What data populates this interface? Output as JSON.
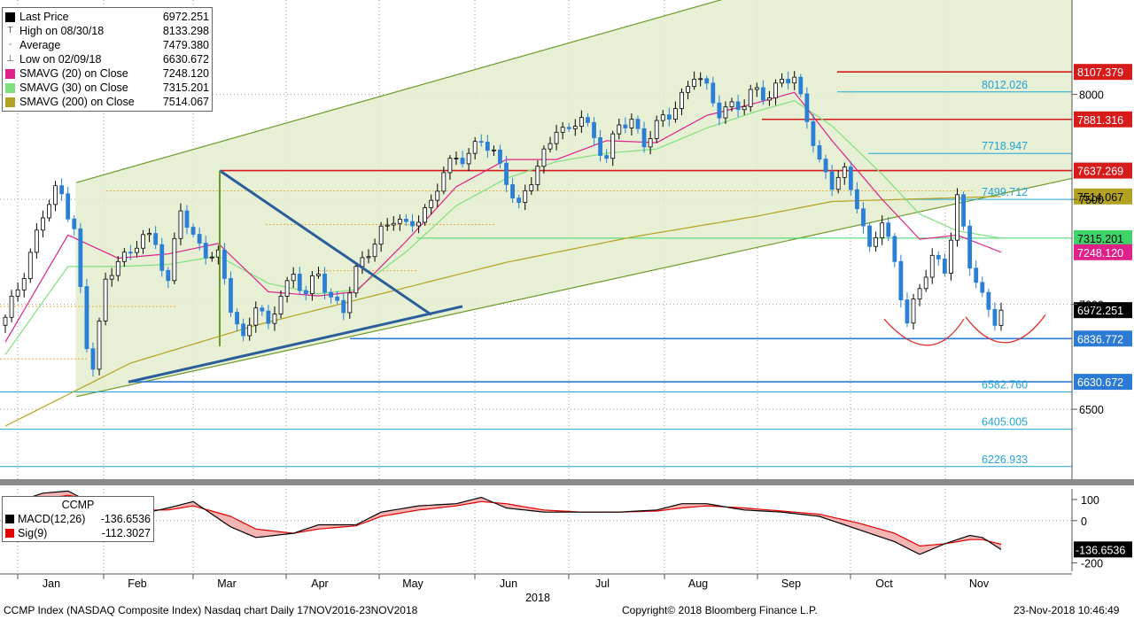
{
  "chart_data": {
    "type": "candlestick",
    "legend": {
      "rows": [
        {
          "label": "Last Price",
          "value": "6972.251",
          "swatch": "#000000"
        },
        {
          "label": "High on 08/30/18",
          "value": "8133.298",
          "glyph": "T"
        },
        {
          "label": "Average",
          "value": "7479.380",
          "glyph": "-"
        },
        {
          "label": "Low on 02/09/18",
          "value": "6630.672",
          "glyph": "⊥"
        },
        {
          "label": "SMAVG (20)  on Close",
          "value": "7248.120",
          "swatch": "#e0218a"
        },
        {
          "label": "SMAVG (30)  on Close",
          "value": "7315.201",
          "swatch": "#7fe07f"
        },
        {
          "label": "SMAVG (200)  on Close",
          "value": "7514.067",
          "swatch": "#b3a222"
        }
      ]
    },
    "x_months": [
      "Jan",
      "Feb",
      "Mar",
      "Apr",
      "May",
      "Jun",
      "Jul",
      "Aug",
      "Sep",
      "Oct",
      "Nov"
    ],
    "x_year": "2018",
    "y_ticks": [
      6500,
      7000,
      7500,
      8000
    ],
    "y_tick_labels": [
      "6500",
      "7000",
      "7500",
      "8000"
    ],
    "ylim": [
      6150,
      8450
    ],
    "price_path": [
      [
        0,
        6920
      ],
      [
        2,
        7080
      ],
      [
        4,
        7250
      ],
      [
        6,
        7420
      ],
      [
        8,
        7530
      ],
      [
        9,
        7520
      ],
      [
        11,
        7380
      ],
      [
        12,
        7060
      ],
      [
        13,
        6780
      ],
      [
        14,
        6700
      ],
      [
        15,
        6900
      ],
      [
        16,
        7100
      ],
      [
        18,
        7240
      ],
      [
        20,
        7220
      ],
      [
        22,
        7330
      ],
      [
        24,
        7300
      ],
      [
        26,
        7110
      ],
      [
        28,
        7440
      ],
      [
        30,
        7320
      ],
      [
        32,
        7260
      ],
      [
        34,
        7220
      ],
      [
        36,
        6980
      ],
      [
        38,
        6840
      ],
      [
        40,
        7010
      ],
      [
        42,
        6870
      ],
      [
        44,
        7060
      ],
      [
        46,
        7150
      ],
      [
        48,
        7040
      ],
      [
        50,
        7140
      ],
      [
        52,
        7040
      ],
      [
        54,
        6980
      ],
      [
        56,
        7140
      ],
      [
        58,
        7260
      ],
      [
        60,
        7360
      ],
      [
        62,
        7400
      ],
      [
        64,
        7360
      ],
      [
        66,
        7430
      ],
      [
        68,
        7480
      ],
      [
        70,
        7620
      ],
      [
        72,
        7700
      ],
      [
        74,
        7730
      ],
      [
        76,
        7770
      ],
      [
        78,
        7710
      ],
      [
        80,
        7610
      ],
      [
        82,
        7460
      ],
      [
        84,
        7580
      ],
      [
        86,
        7720
      ],
      [
        88,
        7860
      ],
      [
        90,
        7800
      ],
      [
        92,
        7900
      ],
      [
        94,
        7800
      ],
      [
        96,
        7700
      ],
      [
        98,
        7840
      ],
      [
        100,
        7880
      ],
      [
        102,
        7780
      ],
      [
        104,
        7840
      ],
      [
        106,
        7900
      ],
      [
        108,
        8000
      ],
      [
        110,
        8100
      ],
      [
        112,
        8010
      ],
      [
        114,
        7920
      ],
      [
        116,
        7960
      ],
      [
        118,
        7940
      ],
      [
        120,
        8020
      ],
      [
        122,
        8000
      ],
      [
        124,
        8080
      ],
      [
        126,
        8050
      ],
      [
        128,
        7900
      ],
      [
        130,
        7680
      ],
      [
        132,
        7560
      ],
      [
        134,
        7620
      ],
      [
        136,
        7500
      ],
      [
        138,
        7250
      ],
      [
        140,
        7390
      ],
      [
        142,
        7200
      ],
      [
        144,
        6930
      ],
      [
        146,
        7060
      ],
      [
        148,
        7220
      ],
      [
        150,
        7180
      ],
      [
        152,
        7500
      ],
      [
        154,
        7180
      ],
      [
        156,
        7040
      ],
      [
        158,
        6940
      ],
      [
        159,
        6972.251
      ]
    ],
    "sma20": [
      [
        0,
        6820
      ],
      [
        10,
        7330
      ],
      [
        18,
        7220
      ],
      [
        26,
        7240
      ],
      [
        34,
        7290
      ],
      [
        42,
        7060
      ],
      [
        50,
        7040
      ],
      [
        56,
        7060
      ],
      [
        64,
        7300
      ],
      [
        72,
        7560
      ],
      [
        80,
        7690
      ],
      [
        88,
        7690
      ],
      [
        96,
        7780
      ],
      [
        104,
        7770
      ],
      [
        112,
        7900
      ],
      [
        120,
        7960
      ],
      [
        126,
        8010
      ],
      [
        132,
        7780
      ],
      [
        140,
        7500
      ],
      [
        146,
        7310
      ],
      [
        152,
        7330
      ],
      [
        159,
        7248.12
      ]
    ],
    "sma30": [
      [
        0,
        6760
      ],
      [
        10,
        7180
      ],
      [
        18,
        7180
      ],
      [
        26,
        7190
      ],
      [
        34,
        7230
      ],
      [
        42,
        7100
      ],
      [
        50,
        7050
      ],
      [
        56,
        7070
      ],
      [
        64,
        7250
      ],
      [
        72,
        7470
      ],
      [
        80,
        7600
      ],
      [
        88,
        7680
      ],
      [
        96,
        7720
      ],
      [
        104,
        7740
      ],
      [
        112,
        7840
      ],
      [
        120,
        7920
      ],
      [
        126,
        7970
      ],
      [
        132,
        7850
      ],
      [
        140,
        7620
      ],
      [
        146,
        7430
      ],
      [
        152,
        7350
      ],
      [
        159,
        7315.201
      ]
    ],
    "sma200": [
      [
        0,
        6420
      ],
      [
        20,
        6720
      ],
      [
        40,
        6900
      ],
      [
        60,
        7050
      ],
      [
        80,
        7200
      ],
      [
        100,
        7320
      ],
      [
        120,
        7420
      ],
      [
        132,
        7490
      ],
      [
        159,
        7514.067
      ]
    ],
    "horizontal_levels": [
      {
        "value": 8107.379,
        "color": "#d71a1a",
        "label": "8107.379",
        "boxed": true
      },
      {
        "value": 8012.026,
        "color": "#21a6d8",
        "label": "8012.026",
        "boxed": false
      },
      {
        "value": 7881.316,
        "color": "#d71a1a",
        "label": "7881.316",
        "boxed": true
      },
      {
        "value": 7718.947,
        "color": "#21a6d8",
        "label": "7718.947",
        "boxed": false
      },
      {
        "value": 7637.269,
        "color": "#d71a1a",
        "label": "7637.269",
        "boxed": true
      },
      {
        "value": 7499.712,
        "color": "#21a6d8",
        "label": "7499.712",
        "boxed": false
      },
      {
        "value": 7514.067,
        "color": "#b3a222",
        "label": "7514.067",
        "boxed": true
      },
      {
        "value": 7315.201,
        "color": "#3fd46a",
        "label": "7315.201",
        "boxed": true
      },
      {
        "value": 7248.12,
        "color": "#e0218a",
        "label": "7248.120",
        "boxed": true
      },
      {
        "value": 6972.251,
        "color": "#000000",
        "label": "6972.251",
        "boxed": true
      },
      {
        "value": 6836.772,
        "color": "#2b7bd6",
        "label": "6836.772",
        "boxed": true
      },
      {
        "value": 6630.672,
        "color": "#2b7bd6",
        "label": "6630.672",
        "boxed": true
      },
      {
        "value": 6582.76,
        "color": "#21a6d8",
        "label": "6582.760",
        "boxed": false
      },
      {
        "value": 6405.005,
        "color": "#21a6d8",
        "label": "6405.005",
        "boxed": false
      },
      {
        "value": 6226.933,
        "color": "#21a6d8",
        "label": "6226.933",
        "boxed": false
      }
    ],
    "macd": {
      "title": "CCMP",
      "macd_label": "MACD(12,26)",
      "macd_value": "-136.6536",
      "sig_label": "Sig(9)",
      "sig_value": "-112.3027",
      "y_ticks": [
        100,
        0,
        -200
      ],
      "y_tick_labels": [
        "100",
        "0",
        "-200"
      ],
      "ylim": [
        -240,
        150
      ],
      "last_box": "-136.6536",
      "macd_line": [
        [
          0,
          70
        ],
        [
          6,
          130
        ],
        [
          10,
          140
        ],
        [
          14,
          80
        ],
        [
          20,
          20
        ],
        [
          26,
          60
        ],
        [
          30,
          90
        ],
        [
          36,
          -30
        ],
        [
          40,
          -80
        ],
        [
          46,
          -60
        ],
        [
          50,
          -20
        ],
        [
          56,
          -20
        ],
        [
          60,
          40
        ],
        [
          66,
          70
        ],
        [
          72,
          80
        ],
        [
          76,
          110
        ],
        [
          80,
          60
        ],
        [
          86,
          40
        ],
        [
          92,
          40
        ],
        [
          98,
          40
        ],
        [
          104,
          50
        ],
        [
          108,
          80
        ],
        [
          112,
          80
        ],
        [
          118,
          50
        ],
        [
          124,
          40
        ],
        [
          130,
          20
        ],
        [
          136,
          -40
        ],
        [
          142,
          -100
        ],
        [
          146,
          -160
        ],
        [
          150,
          -110
        ],
        [
          154,
          -70
        ],
        [
          156,
          -80
        ],
        [
          159,
          -136.6536
        ]
      ],
      "signal_line": [
        [
          0,
          40
        ],
        [
          6,
          100
        ],
        [
          10,
          120
        ],
        [
          14,
          100
        ],
        [
          20,
          50
        ],
        [
          26,
          50
        ],
        [
          30,
          70
        ],
        [
          36,
          20
        ],
        [
          40,
          -40
        ],
        [
          46,
          -60
        ],
        [
          50,
          -40
        ],
        [
          56,
          -25
        ],
        [
          60,
          20
        ],
        [
          66,
          50
        ],
        [
          72,
          70
        ],
        [
          76,
          90
        ],
        [
          80,
          80
        ],
        [
          86,
          50
        ],
        [
          92,
          40
        ],
        [
          98,
          40
        ],
        [
          104,
          45
        ],
        [
          108,
          60
        ],
        [
          112,
          70
        ],
        [
          118,
          60
        ],
        [
          124,
          45
        ],
        [
          130,
          30
        ],
        [
          136,
          -10
        ],
        [
          142,
          -60
        ],
        [
          146,
          -120
        ],
        [
          150,
          -110
        ],
        [
          154,
          -90
        ],
        [
          156,
          -90
        ],
        [
          159,
          -112.3027
        ]
      ]
    }
  },
  "footer": {
    "left": "CCMP Index (NASDAQ Composite Index) Nasdaq chart  Daily 17NOV2016-23NOV2018",
    "center": "Copyright© 2018 Bloomberg Finance L.P.",
    "right": "23-Nov-2018 10:46:49"
  }
}
